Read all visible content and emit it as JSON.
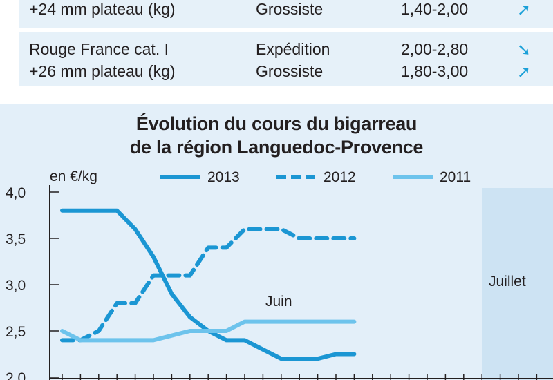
{
  "table": {
    "rows": [
      {
        "product_lines": [
          "+24 mm plateau (kg)"
        ],
        "stages": [
          "Grossiste"
        ],
        "prices": [
          "1,40-2,00"
        ],
        "trends": [
          "up"
        ]
      },
      {
        "product_lines": [
          "Rouge France cat. I",
          "+26 mm plateau (kg)"
        ],
        "stages": [
          "Expédition",
          "Grossiste"
        ],
        "prices": [
          "2,00-2,80",
          "1,80-3,00"
        ],
        "trends": [
          "down",
          "up"
        ]
      }
    ]
  },
  "chart_data": {
    "type": "line",
    "title": "Évolution du cours du bigarreau",
    "subtitle": "de la région Languedoc-Provence",
    "ylabel": "en €/kg",
    "ylim": [
      2.0,
      4.0
    ],
    "yticks": [
      "2,0",
      "2,5",
      "3,0",
      "3,5",
      "4,0"
    ],
    "annotations": [
      "Juin",
      "Juillet"
    ],
    "x": [
      0,
      1,
      2,
      3,
      4,
      5,
      6,
      7,
      8,
      9,
      10,
      11,
      12,
      13,
      14,
      15,
      16,
      17,
      18,
      19,
      20,
      21,
      22,
      23,
      24,
      25,
      26
    ],
    "series": [
      {
        "name": "2013",
        "style": "solid-dark",
        "color": "#1b96d3",
        "values": [
          3.8,
          3.8,
          3.8,
          3.8,
          3.6,
          3.3,
          2.9,
          2.65,
          2.5,
          2.4,
          2.4,
          2.3,
          2.2,
          2.2,
          2.2,
          2.25,
          2.25,
          null,
          null,
          null,
          null,
          null,
          null,
          null,
          null,
          null,
          null
        ]
      },
      {
        "name": "2012",
        "style": "dashed",
        "color": "#1b96d3",
        "values": [
          2.4,
          2.4,
          2.5,
          2.8,
          2.8,
          3.1,
          3.1,
          3.1,
          3.4,
          3.4,
          3.6,
          3.6,
          3.6,
          3.5,
          3.5,
          3.5,
          3.5,
          null,
          null,
          null,
          null,
          null,
          null,
          null,
          null,
          null,
          null
        ]
      },
      {
        "name": "2011",
        "style": "solid-light",
        "color": "#6dc3ec",
        "values": [
          2.5,
          2.4,
          2.4,
          2.4,
          2.4,
          2.4,
          2.45,
          2.5,
          2.5,
          2.5,
          2.6,
          2.6,
          2.6,
          2.6,
          2.6,
          2.6,
          2.6,
          null,
          null,
          null,
          null,
          null,
          null,
          null,
          null,
          null,
          null
        ]
      }
    ],
    "legend_placement": "top",
    "grid": false,
    "colors": {
      "panel_bg": "#e3eff9",
      "july_band": "#cde3f3"
    }
  }
}
